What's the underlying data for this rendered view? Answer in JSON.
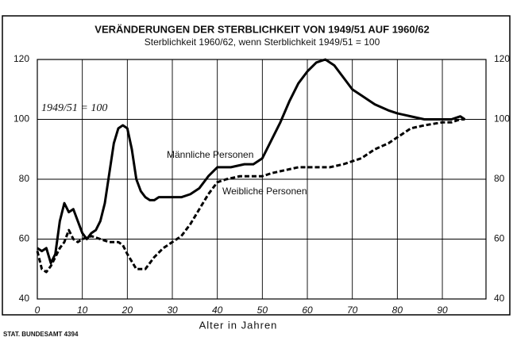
{
  "chart_data": {
    "type": "line",
    "title": "VERÄNDERUNGEN DER STERBLICHKEIT VON 1949/51 AUF 1960/62",
    "subtitle": "Sterblichkeit 1960/62, wenn Sterblichkeit 1949/51 = 100",
    "x_label": "Alter in Jahren",
    "source": "STAT. BUNDESAMT 4394",
    "annotations": [
      "1949/51 = 100"
    ],
    "xlim": [
      0,
      99.7
    ],
    "xticks": [
      0,
      10,
      20,
      30,
      40,
      50,
      60,
      70,
      80,
      90
    ],
    "ylim": [
      40,
      120
    ],
    "yticks": [
      40,
      60,
      80,
      100,
      120
    ],
    "y2lim": [
      40,
      120
    ],
    "y2ticks": [
      40,
      60,
      80,
      100,
      120
    ],
    "grid": true,
    "series": [
      {
        "name": "Männliche Personen",
        "color": "#000000",
        "dash": "solid",
        "x": [
          0,
          1,
          2,
          3,
          4,
          5,
          6,
          7,
          8,
          9,
          10,
          11,
          12,
          13,
          14,
          15,
          16,
          17,
          18,
          19,
          20,
          21,
          22,
          23,
          24,
          25,
          26,
          27,
          28,
          30,
          32,
          34,
          36,
          38,
          40,
          43,
          46,
          48,
          50,
          52,
          54,
          56,
          58,
          60,
          62,
          64,
          66,
          68,
          70,
          72,
          75,
          78,
          80,
          83,
          86,
          88,
          90,
          92,
          94,
          95
        ],
        "values": [
          57,
          56,
          57,
          52,
          55,
          66,
          72,
          69,
          70,
          66,
          62,
          60,
          62,
          63,
          66,
          72,
          82,
          92,
          97,
          98,
          97,
          90,
          80,
          76,
          74,
          73,
          73,
          74,
          74,
          74,
          74,
          75,
          77,
          81,
          84,
          84,
          85,
          85,
          87,
          93,
          99,
          106,
          112,
          116,
          119,
          120,
          118,
          114,
          110,
          108,
          105,
          103,
          102,
          101,
          100,
          100,
          100,
          100,
          101,
          100
        ]
      },
      {
        "name": "Weibliche Personen",
        "color": "#000000",
        "dash": "dashed",
        "x": [
          0,
          1,
          2,
          3,
          4,
          5,
          6,
          7,
          8,
          9,
          10,
          12,
          14,
          16,
          18,
          19,
          20,
          22,
          24,
          26,
          28,
          30,
          32,
          34,
          36,
          38,
          40,
          42,
          45,
          48,
          50,
          52,
          55,
          58,
          60,
          62,
          65,
          68,
          70,
          72,
          75,
          78,
          80,
          83,
          86,
          90,
          92,
          94,
          95
        ],
        "values": [
          56,
          50,
          49,
          51,
          54,
          57,
          59,
          63,
          60,
          59,
          60,
          61,
          60,
          59,
          59,
          58,
          55,
          50,
          50,
          54,
          57,
          59,
          61,
          65,
          70,
          75,
          79,
          80,
          81,
          81,
          81,
          82,
          83,
          84,
          84,
          84,
          84,
          85,
          86,
          87,
          90,
          92,
          94,
          97,
          98,
          99,
          99,
          100,
          100
        ]
      }
    ]
  }
}
